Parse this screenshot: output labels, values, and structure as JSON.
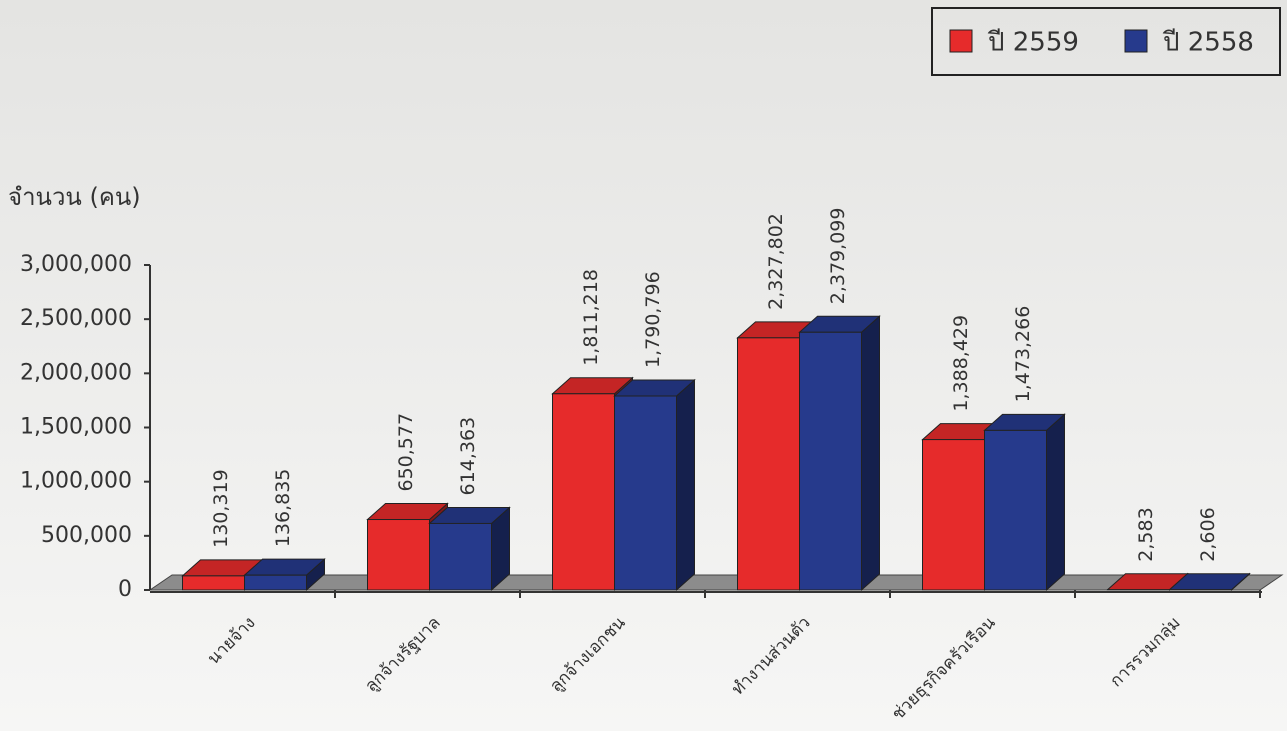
{
  "chart_data": {
    "type": "bar3d",
    "y_axis_label": "จำนวน (คน)",
    "categories": [
      "นายจ้าง",
      "ลูกจ้างรัฐบาล",
      "ลูกจ้างเอกชน",
      "ทำงานส่วนตัว",
      "ช่วยธุรกิจครัวเรือน",
      "การรวมกลุ่ม"
    ],
    "series": [
      {
        "name": "ปี 2559",
        "color": "#e62b2b",
        "values": [
          130319,
          650577,
          1811218,
          2327802,
          1388429,
          2583
        ],
        "value_labels": [
          "130,319",
          "650,577",
          "1,811,218",
          "2,327,802",
          "1,388,429",
          "2,583"
        ]
      },
      {
        "name": "ปี 2558",
        "color": "#263a8c",
        "values": [
          136835,
          614363,
          1790796,
          2379099,
          1473266,
          2606
        ],
        "value_labels": [
          "136,835",
          "614,363",
          "1,790,796",
          "2,379,099",
          "1,473,266",
          "2,606"
        ]
      }
    ],
    "ylim": [
      0,
      3000000
    ],
    "yticks": [
      {
        "value": 0,
        "label": "0"
      },
      {
        "value": 500000,
        "label": "500,000"
      },
      {
        "value": 1000000,
        "label": "1,000,000"
      },
      {
        "value": 1500000,
        "label": "1,500,000"
      },
      {
        "value": 2000000,
        "label": "2,000,000"
      },
      {
        "value": 2500000,
        "label": "2,500,000"
      },
      {
        "value": 3000000,
        "label": "3,000,000"
      }
    ],
    "legend": "top-right"
  }
}
